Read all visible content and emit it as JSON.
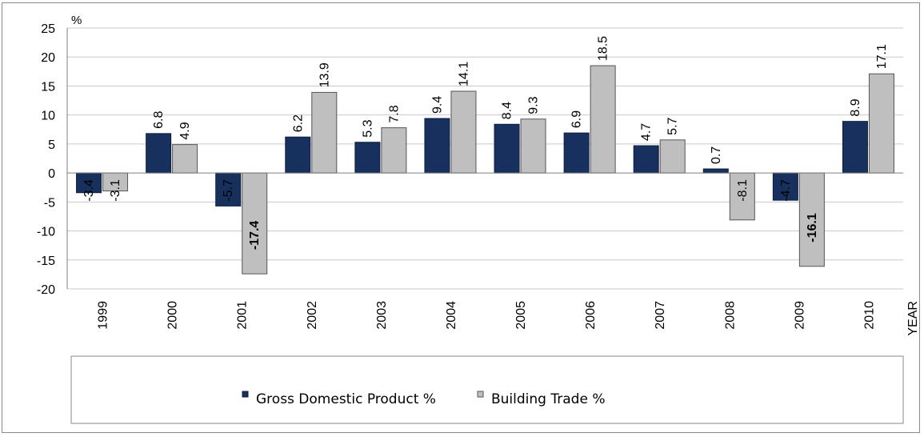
{
  "chart_data": {
    "type": "bar",
    "categories": [
      "1999",
      "2000",
      "2001",
      "2002",
      "2003",
      "2004",
      "2005",
      "2006",
      "2007",
      "2008",
      "2009",
      "2010"
    ],
    "series": [
      {
        "name": "Gross Domestic Product %",
        "color": "#17305e",
        "values": [
          -3.4,
          6.8,
          -5.7,
          6.2,
          5.3,
          9.4,
          8.4,
          6.9,
          4.7,
          0.7,
          -4.7,
          8.9
        ],
        "labels": [
          "-3.4",
          "6.8",
          "-5.7",
          "6.2",
          "5.3",
          "9.4",
          "8.4",
          "6.9",
          "4.7",
          "0.7",
          "-4.7",
          "8.9"
        ]
      },
      {
        "name": "Building Trade %",
        "color": "#bfbfbf",
        "values": [
          -3.1,
          4.9,
          -17.4,
          13.9,
          7.8,
          14.1,
          9.3,
          18.5,
          5.7,
          -8.1,
          -16.1,
          17.1
        ],
        "labels": [
          "-3.1",
          "4.9",
          "-17.4",
          "13.9",
          "7.8",
          "14.1",
          "9.3",
          "18.5",
          "5.7",
          "-8.1",
          "-16.1",
          "17.1"
        ]
      }
    ],
    "yticks": [
      "25",
      "20",
      "15",
      "10",
      "5",
      "0",
      "-5",
      "-10",
      "-15",
      "-20"
    ],
    "ylim": [
      -20,
      25
    ],
    "ylabel": "%",
    "xlabel": "YEAR",
    "grid": true,
    "legend_position": "bottom"
  }
}
